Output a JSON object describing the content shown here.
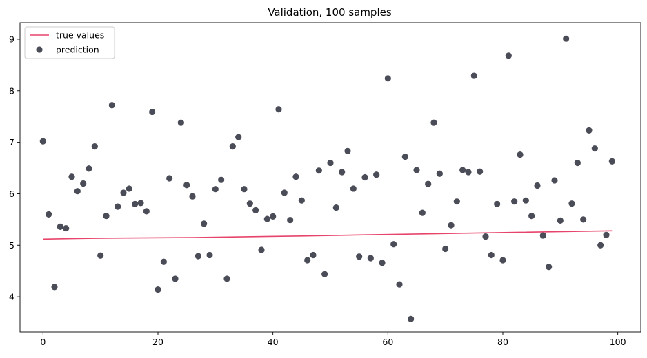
{
  "chart_data": {
    "type": "scatter",
    "title": "Validation, 100 samples",
    "xlabel": "",
    "ylabel": "",
    "xlim": [
      -4,
      104
    ],
    "ylim": [
      3.32,
      9.32
    ],
    "xticks": [
      0,
      20,
      40,
      60,
      80,
      100
    ],
    "yticks": [
      4,
      5,
      6,
      7,
      8,
      9
    ],
    "grid": false,
    "legend": {
      "placement": "top-left",
      "entries": [
        "true values",
        "prediction"
      ]
    },
    "colors": {
      "true_values": "#e8446b",
      "prediction": "#4a4c57"
    },
    "series": [
      {
        "name": "true values",
        "kind": "line",
        "x": [
          0,
          5,
          12,
          26,
          45,
          55,
          66,
          82,
          99
        ],
        "y": [
          5.12,
          5.13,
          5.14,
          5.15,
          5.18,
          5.2,
          5.22,
          5.25,
          5.28
        ]
      },
      {
        "name": "prediction",
        "kind": "scatter",
        "x": [
          0,
          1,
          2,
          3,
          4,
          5,
          6,
          7,
          8,
          9,
          10,
          11,
          12,
          13,
          14,
          15,
          16,
          17,
          18,
          19,
          20,
          21,
          22,
          23,
          24,
          25,
          26,
          27,
          28,
          29,
          30,
          31,
          32,
          33,
          34,
          35,
          36,
          37,
          38,
          39,
          40,
          41,
          42,
          43,
          44,
          45,
          46,
          47,
          48,
          49,
          50,
          51,
          52,
          53,
          54,
          55,
          56,
          57,
          58,
          59,
          60,
          61,
          62,
          63,
          64,
          65,
          66,
          67,
          68,
          69,
          70,
          71,
          72,
          73,
          74,
          75,
          76,
          77,
          78,
          79,
          80,
          81,
          82,
          83,
          84,
          85,
          86,
          87,
          88,
          89,
          90,
          91,
          92,
          93,
          94,
          95,
          96,
          97,
          98,
          99
        ],
        "y": [
          7.02,
          5.6,
          4.19,
          5.36,
          5.33,
          6.33,
          6.05,
          6.2,
          6.49,
          6.92,
          4.8,
          5.57,
          7.72,
          5.75,
          6.02,
          6.1,
          5.8,
          5.82,
          5.66,
          7.59,
          4.14,
          4.68,
          6.3,
          4.35,
          7.38,
          6.17,
          5.95,
          4.79,
          5.42,
          4.81,
          6.09,
          6.27,
          4.35,
          6.92,
          7.1,
          6.09,
          5.81,
          5.68,
          4.91,
          5.51,
          5.56,
          7.64,
          6.02,
          5.49,
          6.33,
          5.87,
          4.71,
          4.81,
          6.45,
          4.44,
          6.6,
          5.73,
          6.42,
          6.83,
          6.1,
          4.78,
          6.32,
          4.75,
          6.37,
          4.66,
          8.24,
          5.02,
          4.24,
          6.72,
          3.57,
          6.46,
          5.63,
          6.19,
          7.38,
          6.39,
          4.93,
          5.39,
          5.85,
          6.46,
          6.42,
          8.29,
          6.43,
          5.17,
          4.81,
          5.8,
          4.71,
          8.68,
          5.85,
          6.76,
          5.87,
          5.57,
          6.16,
          5.19,
          4.58,
          6.26,
          5.48,
          9.01,
          5.81,
          6.6,
          5.5,
          7.23,
          6.88,
          5.0,
          5.2,
          6.63
        ]
      }
    ]
  }
}
